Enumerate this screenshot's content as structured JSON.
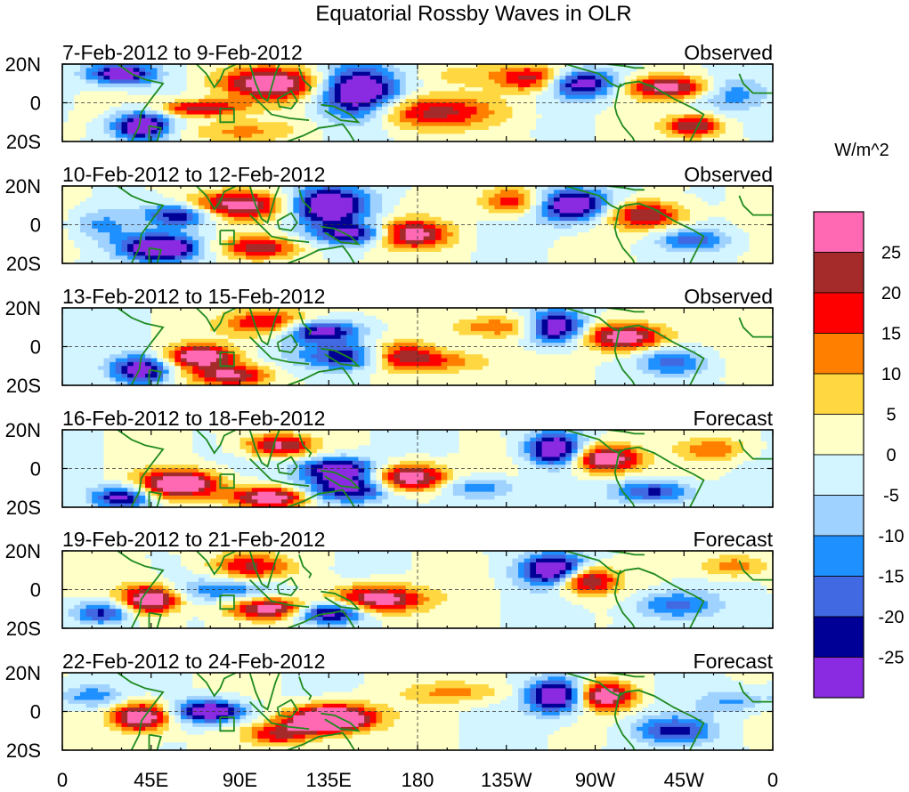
{
  "chart_data": {
    "type": "heatmap",
    "title": "Equatorial Rossby Waves in OLR",
    "colorbar": {
      "unit_label": "W/m^2",
      "tick_labels": [
        "25",
        "20",
        "15",
        "10",
        "5",
        "0",
        "-5",
        "-10",
        "-15",
        "-20",
        "-25"
      ],
      "colors": [
        "#ff69b4",
        "#a52a2a",
        "#ff0000",
        "#ff7f00",
        "#ffd740",
        "#ffffc8",
        "#d2f5ff",
        "#a0d2ff",
        "#1e90ff",
        "#4169e1",
        "#000096",
        "#8a2be2"
      ]
    },
    "x_tick_labels": [
      "0",
      "45E",
      "90E",
      "135E",
      "180",
      "135W",
      "90W",
      "45W",
      "0"
    ],
    "y_tick_labels": [
      "20N",
      "0",
      "20S"
    ],
    "x_range_deg": [
      0,
      360
    ],
    "y_range_deg": [
      -20,
      20
    ],
    "panels": [
      {
        "date_range": "7-Feb-2012 to 9-Feb-2012",
        "status": "Observed",
        "features": [
          [
            30,
            15,
            12,
            4,
            -22
          ],
          [
            40,
            -12,
            10,
            5,
            -25
          ],
          [
            70,
            -3,
            14,
            3,
            18
          ],
          [
            105,
            10,
            18,
            6,
            22
          ],
          [
            150,
            5,
            14,
            10,
            -25
          ],
          [
            185,
            -5,
            25,
            6,
            15
          ],
          [
            240,
            12,
            12,
            5,
            18
          ],
          [
            262,
            10,
            14,
            5,
            -22
          ],
          [
            307,
            8,
            15,
            4,
            20
          ],
          [
            320,
            -12,
            10,
            4,
            18
          ],
          [
            90,
            -15,
            20,
            4,
            8
          ],
          [
            210,
            15,
            20,
            4,
            5
          ],
          [
            340,
            5,
            12,
            6,
            -8
          ]
        ]
      },
      {
        "date_range": "10-Feb-2012 to 12-Feb-2012",
        "status": "Observed",
        "features": [
          [
            60,
            5,
            12,
            4,
            -18
          ],
          [
            50,
            -12,
            14,
            5,
            -25
          ],
          [
            90,
            10,
            18,
            5,
            20
          ],
          [
            135,
            10,
            14,
            7,
            -25
          ],
          [
            150,
            -5,
            14,
            4,
            -20
          ],
          [
            175,
            -5,
            14,
            5,
            22
          ],
          [
            230,
            12,
            12,
            5,
            15
          ],
          [
            258,
            10,
            14,
            6,
            -25
          ],
          [
            295,
            5,
            14,
            5,
            18
          ],
          [
            100,
            -12,
            14,
            4,
            16
          ],
          [
            320,
            -8,
            12,
            4,
            -12
          ],
          [
            20,
            0,
            10,
            6,
            -8
          ]
        ]
      },
      {
        "date_range": "13-Feb-2012 to 15-Feb-2012",
        "status": "Observed",
        "features": [
          [
            40,
            -12,
            10,
            5,
            -22
          ],
          [
            70,
            -5,
            12,
            4,
            22
          ],
          [
            105,
            12,
            16,
            5,
            16
          ],
          [
            130,
            8,
            14,
            4,
            -22
          ],
          [
            150,
            -5,
            18,
            5,
            -22
          ],
          [
            170,
            -5,
            14,
            5,
            25
          ],
          [
            220,
            10,
            18,
            4,
            10
          ],
          [
            250,
            10,
            10,
            6,
            -25
          ],
          [
            285,
            5,
            14,
            5,
            22
          ],
          [
            310,
            -8,
            12,
            5,
            -12
          ],
          [
            85,
            -15,
            14,
            4,
            18
          ],
          [
            200,
            -8,
            14,
            4,
            8
          ]
        ]
      },
      {
        "date_range": "16-Feb-2012 to 18-Feb-2012",
        "status": "Forecast",
        "features": [
          [
            30,
            -15,
            10,
            4,
            -20
          ],
          [
            60,
            -8,
            14,
            5,
            25
          ],
          [
            110,
            12,
            12,
            4,
            18
          ],
          [
            140,
            0,
            14,
            4,
            -22
          ],
          [
            145,
            -10,
            16,
            5,
            -22
          ],
          [
            175,
            -5,
            14,
            5,
            25
          ],
          [
            105,
            -15,
            14,
            4,
            22
          ],
          [
            250,
            10,
            10,
            6,
            -25
          ],
          [
            275,
            5,
            12,
            5,
            24
          ],
          [
            300,
            -12,
            14,
            4,
            -15
          ],
          [
            210,
            -10,
            14,
            4,
            -10
          ],
          [
            330,
            10,
            12,
            4,
            10
          ]
        ]
      },
      {
        "date_range": "19-Feb-2012 to 21-Feb-2012",
        "status": "Forecast",
        "features": [
          [
            45,
            -5,
            10,
            5,
            25
          ],
          [
            20,
            -12,
            10,
            4,
            -16
          ],
          [
            95,
            12,
            14,
            5,
            14
          ],
          [
            105,
            -10,
            14,
            4,
            20
          ],
          [
            160,
            -5,
            16,
            5,
            22
          ],
          [
            135,
            -12,
            12,
            4,
            -22
          ],
          [
            250,
            10,
            12,
            6,
            -25
          ],
          [
            265,
            5,
            10,
            5,
            24
          ],
          [
            310,
            -8,
            14,
            5,
            -12
          ],
          [
            340,
            12,
            12,
            4,
            10
          ],
          [
            85,
            0,
            20,
            4,
            -10
          ]
        ]
      },
      {
        "date_range": "22-Feb-2012 to 24-Feb-2012",
        "status": "Forecast",
        "features": [
          [
            40,
            -3,
            10,
            5,
            25
          ],
          [
            75,
            0,
            12,
            4,
            -25
          ],
          [
            130,
            -5,
            12,
            4,
            20
          ],
          [
            140,
            -3,
            14,
            5,
            22
          ],
          [
            110,
            -12,
            12,
            4,
            14
          ],
          [
            250,
            8,
            10,
            6,
            -25
          ],
          [
            275,
            8,
            10,
            5,
            22
          ],
          [
            310,
            -10,
            14,
            5,
            -15
          ],
          [
            340,
            5,
            12,
            4,
            -8
          ],
          [
            200,
            10,
            18,
            4,
            8
          ],
          [
            15,
            8,
            10,
            4,
            -10
          ]
        ]
      }
    ]
  }
}
